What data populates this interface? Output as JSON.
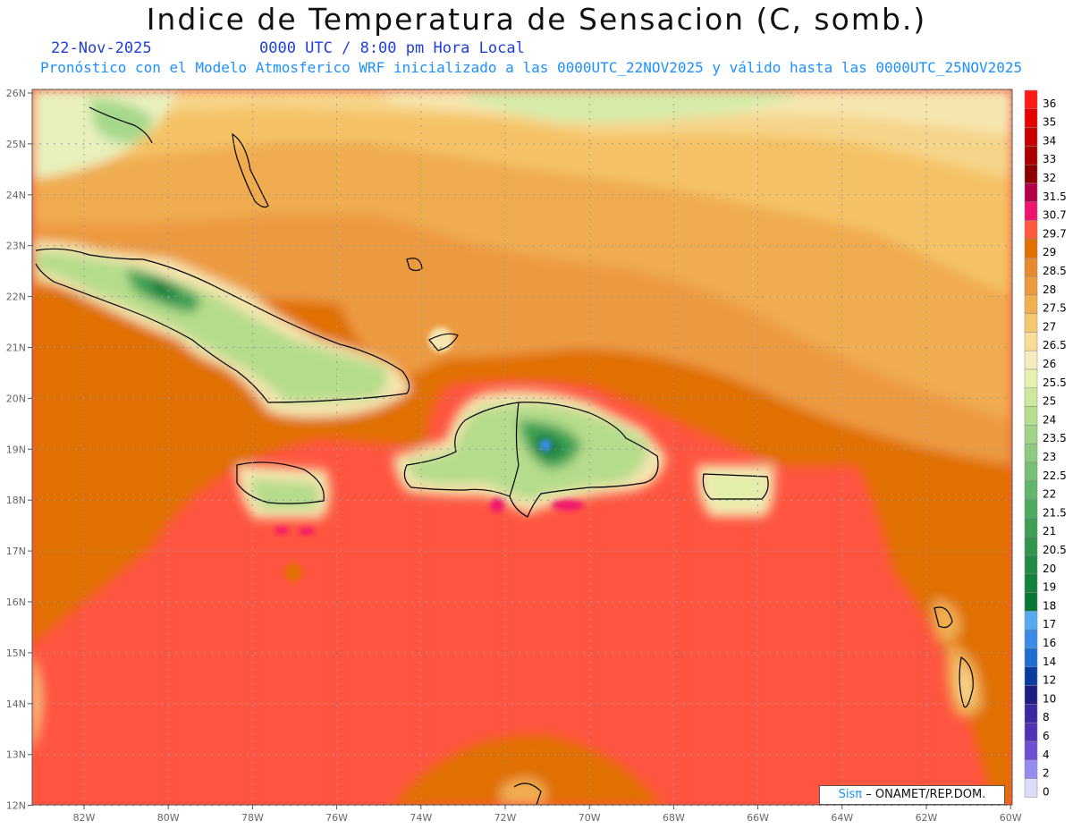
{
  "header": {
    "title": "Indice de Temperatura de Sensacion (C, somb.)",
    "date": "22-Nov-2025",
    "time": "0000 UTC / 8:00 pm Hora Local",
    "model_line": "Pronóstico con el Modelo Atmosferico WRF inicializado a las 0000UTC_22NOV2025 y válido hasta las  0000UTC_25NOV2025"
  },
  "axes": {
    "lon_labels": [
      "82W",
      "80W",
      "78W",
      "76W",
      "74W",
      "72W",
      "70W",
      "68W",
      "66W",
      "64W",
      "62W",
      "60W"
    ],
    "lat_labels": [
      "26N",
      "25N",
      "24N",
      "23N",
      "22N",
      "21N",
      "20N",
      "19N",
      "18N",
      "17N",
      "16N",
      "15N",
      "14N",
      "13N",
      "12N"
    ]
  },
  "colorbar": {
    "labels": [
      "36",
      "35",
      "34",
      "33",
      "32",
      "31.5",
      "30.7",
      "29.7",
      "29",
      "28.5",
      "28",
      "27.5",
      "27",
      "26.5",
      "26",
      "25.5",
      "25",
      "24",
      "23.5",
      "23",
      "22.5",
      "22",
      "21.5",
      "21",
      "20.5",
      "20",
      "19",
      "18",
      "17",
      "16",
      "14",
      "12",
      "10",
      "8",
      "6",
      "4",
      "2",
      "0"
    ],
    "colors": [
      "#ff1a1a",
      "#e60000",
      "#c80000",
      "#aa0000",
      "#8c0000",
      "#b4004a",
      "#f0146e",
      "#ff5a3c",
      "#e07000",
      "#e88a30",
      "#eb9a40",
      "#f0b050",
      "#f5c870",
      "#f8dc98",
      "#f5ecc0",
      "#e8f2b0",
      "#cfe8a0",
      "#b5de90",
      "#a0d488",
      "#8ccb80",
      "#78c078",
      "#62b56c",
      "#4eaa60",
      "#3ea055",
      "#2f964c",
      "#208c44",
      "#12823c",
      "#0a7834",
      "#55aaf0",
      "#3a8ce6",
      "#1e6ed2",
      "#0a3ca0",
      "#1e1e82",
      "#3c28a0",
      "#5032b4",
      "#6e50d2",
      "#968cf0",
      "#dcdcfa"
    ]
  },
  "credit": {
    "logo": "Sisπ",
    "text": "– ONAMET/REP.DOM."
  }
}
